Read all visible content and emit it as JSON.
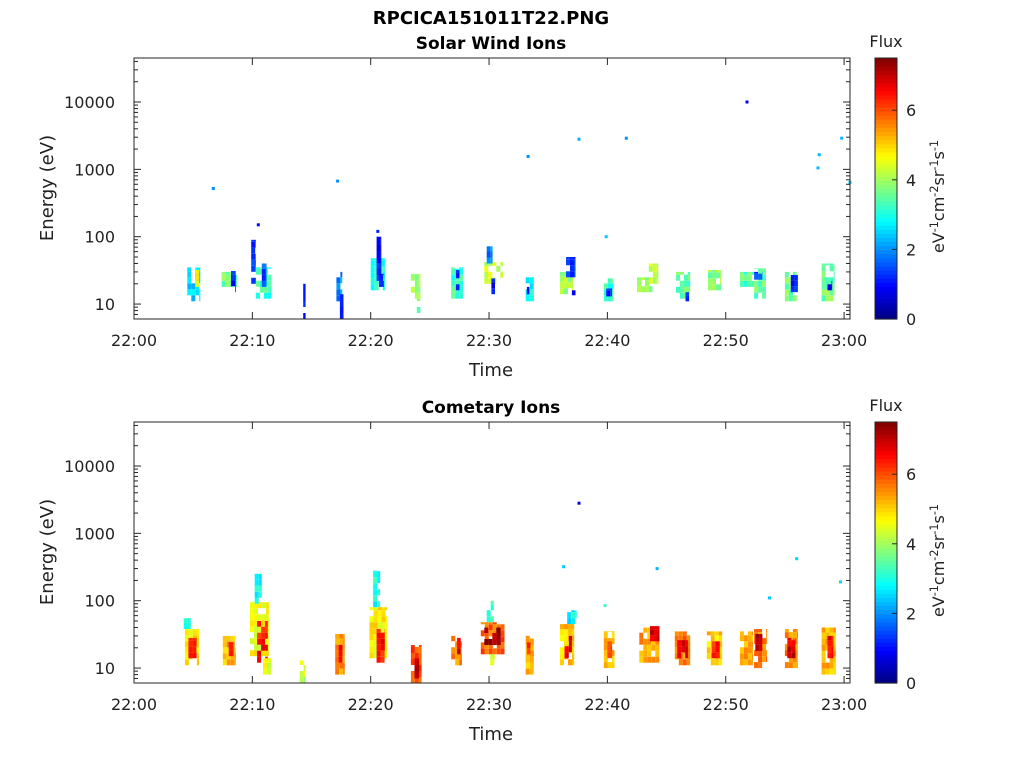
{
  "figure": {
    "title": "RPCICA151011T22.PNG",
    "background": "#ffffff",
    "axis_color": "#262626"
  },
  "colorbar": {
    "label": "Flux",
    "unit": "eV-1cm-2sr-1s-1",
    "ticks": [
      0,
      2,
      4,
      6
    ],
    "range": [
      0,
      7.5
    ],
    "colormap": "jet"
  },
  "chart_data": [
    {
      "type": "heatmap",
      "title": "Solar Wind Ions",
      "xlabel": "Time",
      "ylabel": "Energy (eV)",
      "x_ticks": [
        "22:00",
        "22:10",
        "22:20",
        "22:30",
        "22:40",
        "22:50",
        "23:00"
      ],
      "x_range_minutes": [
        0,
        60.5
      ],
      "y_scale": "log",
      "y_ticks": [
        10,
        100,
        1000,
        10000
      ],
      "y_range": [
        6,
        45000
      ],
      "grid": false,
      "blocks": [
        [
          4.5,
          5.6,
          11,
          35,
          2.5
        ],
        [
          5.2,
          5.5,
          18,
          32,
          4.5
        ],
        [
          7.4,
          8.7,
          18,
          30,
          3.6
        ],
        [
          8.2,
          8.6,
          15,
          31,
          1.0
        ],
        [
          9.9,
          10.3,
          20,
          90,
          1.3
        ],
        [
          10.3,
          11.6,
          12,
          35,
          3.2
        ],
        [
          10.8,
          11.2,
          18,
          40,
          1.5
        ],
        [
          14.3,
          14.5,
          6,
          20,
          1.0
        ],
        [
          17.1,
          17.6,
          11,
          30,
          2.0
        ],
        [
          17.4,
          17.7,
          6,
          14,
          1.2
        ],
        [
          20.0,
          21.2,
          16,
          48,
          3.0
        ],
        [
          20.5,
          20.9,
          22,
          100,
          1.0
        ],
        [
          20.7,
          21.1,
          18,
          28,
          0.8
        ],
        [
          23.4,
          24.2,
          12,
          28,
          4.0
        ],
        [
          23.9,
          24.2,
          6,
          12,
          3.6
        ],
        [
          26.8,
          27.8,
          12,
          35,
          3.2
        ],
        [
          27.2,
          27.5,
          16,
          32,
          1.2
        ],
        [
          29.6,
          31.2,
          20,
          42,
          4.2
        ],
        [
          29.8,
          30.3,
          40,
          72,
          1.8
        ],
        [
          30.2,
          30.5,
          14,
          24,
          1.0
        ],
        [
          33.1,
          33.8,
          11,
          25,
          2.8
        ],
        [
          33.2,
          33.4,
          14,
          18,
          1.0
        ],
        [
          36.0,
          37.1,
          14,
          30,
          4.0
        ],
        [
          36.5,
          37.3,
          25,
          50,
          1.3
        ],
        [
          37.0,
          37.3,
          11,
          16,
          1.2
        ],
        [
          39.7,
          40.5,
          11,
          24,
          3.2
        ],
        [
          39.9,
          40.4,
          13,
          17,
          1.0
        ],
        [
          42.5,
          43.8,
          15,
          25,
          3.8
        ],
        [
          43.5,
          44.3,
          20,
          40,
          4.2
        ],
        [
          45.8,
          47.0,
          12,
          30,
          3.5
        ],
        [
          46.6,
          46.9,
          11,
          15,
          1.2
        ],
        [
          48.5,
          49.6,
          16,
          32,
          3.8
        ],
        [
          51.2,
          52.4,
          18,
          30,
          3.4
        ],
        [
          52.4,
          53.4,
          12,
          34,
          3.5
        ],
        [
          52.4,
          53.1,
          23,
          30,
          1.5
        ],
        [
          55.0,
          56.0,
          11,
          30,
          3.6
        ],
        [
          55.5,
          56.1,
          15,
          27,
          1.0
        ],
        [
          58.1,
          59.2,
          11,
          40,
          3.6
        ],
        [
          58.6,
          59.0,
          16,
          22,
          1.0
        ]
      ],
      "points": [
        [
          6.7,
          520,
          2.0
        ],
        [
          10.5,
          150,
          1.0
        ],
        [
          17.2,
          670,
          2.0
        ],
        [
          20.6,
          120,
          1.2
        ],
        [
          33.3,
          1550,
          2.0
        ],
        [
          37.6,
          2800,
          2.2
        ],
        [
          39.9,
          100,
          2.4
        ],
        [
          41.6,
          2900,
          2.0
        ],
        [
          51.8,
          10000,
          0.8
        ],
        [
          57.9,
          1650,
          2.3
        ],
        [
          57.8,
          1050,
          2.3
        ],
        [
          59.8,
          2900,
          2.3
        ],
        [
          60.5,
          640,
          2.5
        ]
      ]
    },
    {
      "type": "heatmap",
      "title": "Cometary Ions",
      "xlabel": "Time",
      "ylabel": "Energy (eV)",
      "x_ticks": [
        "22:00",
        "22:10",
        "22:20",
        "22:30",
        "22:40",
        "22:50",
        "23:00"
      ],
      "x_range_minutes": [
        0,
        60.5
      ],
      "y_scale": "log",
      "y_ticks": [
        10,
        100,
        1000,
        10000
      ],
      "y_range": [
        6,
        45000
      ],
      "grid": false,
      "blocks": [
        [
          4.3,
          5.5,
          11,
          38,
          4.8
        ],
        [
          4.6,
          5.3,
          14,
          28,
          6.5
        ],
        [
          4.2,
          4.8,
          38,
          55,
          3.2
        ],
        [
          7.5,
          8.6,
          11,
          30,
          5.2
        ],
        [
          8.0,
          8.4,
          15,
          24,
          6.6
        ],
        [
          9.8,
          11.4,
          15,
          95,
          4.6
        ],
        [
          10.4,
          11.3,
          12,
          50,
          6.4
        ],
        [
          10.2,
          10.8,
          90,
          290,
          2.8
        ],
        [
          10.9,
          11.6,
          8,
          14,
          4.4
        ],
        [
          14.0,
          14.5,
          6,
          13,
          4.2
        ],
        [
          17.0,
          17.8,
          8,
          32,
          5.5
        ],
        [
          17.3,
          17.6,
          12,
          22,
          6.8
        ],
        [
          19.9,
          21.4,
          14,
          80,
          4.7
        ],
        [
          20.5,
          21.2,
          12,
          38,
          6.4
        ],
        [
          20.2,
          20.8,
          80,
          280,
          2.9
        ],
        [
          23.4,
          24.3,
          6,
          22,
          5.9
        ],
        [
          23.7,
          24.1,
          7,
          14,
          6.8
        ],
        [
          26.8,
          27.7,
          11,
          30,
          5.5
        ],
        [
          27.3,
          27.6,
          16,
          28,
          6.6
        ],
        [
          29.3,
          31.3,
          16,
          48,
          5.8
        ],
        [
          29.6,
          31.0,
          22,
          40,
          7.2
        ],
        [
          29.8,
          30.4,
          48,
          100,
          3.2
        ],
        [
          30.1,
          30.5,
          11,
          16,
          4.6
        ],
        [
          33.1,
          33.8,
          8,
          30,
          5.2
        ],
        [
          33.2,
          33.5,
          16,
          24,
          6.2
        ],
        [
          36.0,
          37.2,
          11,
          45,
          5.0
        ],
        [
          36.4,
          37.0,
          14,
          30,
          6.6
        ],
        [
          36.6,
          37.4,
          45,
          72,
          2.8
        ],
        [
          39.7,
          40.6,
          10,
          35,
          5.2
        ],
        [
          40.0,
          40.4,
          14,
          25,
          6.2
        ],
        [
          42.7,
          44.4,
          12,
          40,
          5.3
        ],
        [
          43.6,
          44.4,
          25,
          42,
          6.8
        ],
        [
          45.7,
          47.0,
          11,
          35,
          5.6
        ],
        [
          45.9,
          46.8,
          14,
          26,
          6.8
        ],
        [
          48.4,
          49.7,
          11,
          35,
          5.0
        ],
        [
          48.8,
          49.5,
          14,
          25,
          6.3
        ],
        [
          51.2,
          52.3,
          11,
          35,
          5.2
        ],
        [
          52.4,
          53.5,
          10,
          38,
          5.6
        ],
        [
          52.5,
          53.1,
          18,
          32,
          7.0
        ],
        [
          55.0,
          56.1,
          10,
          38,
          5.5
        ],
        [
          55.2,
          55.9,
          14,
          28,
          6.8
        ],
        [
          58.1,
          59.3,
          8,
          40,
          5.2
        ],
        [
          58.6,
          59.1,
          14,
          30,
          6.6
        ]
      ],
      "points": [
        [
          37.6,
          2800,
          0.8
        ],
        [
          36.3,
          320,
          2.4
        ],
        [
          39.8,
          85,
          3.2
        ],
        [
          44.2,
          300,
          2.3
        ],
        [
          53.7,
          110,
          2.4
        ],
        [
          56.0,
          420,
          2.5
        ],
        [
          59.7,
          190,
          2.5
        ]
      ]
    }
  ]
}
